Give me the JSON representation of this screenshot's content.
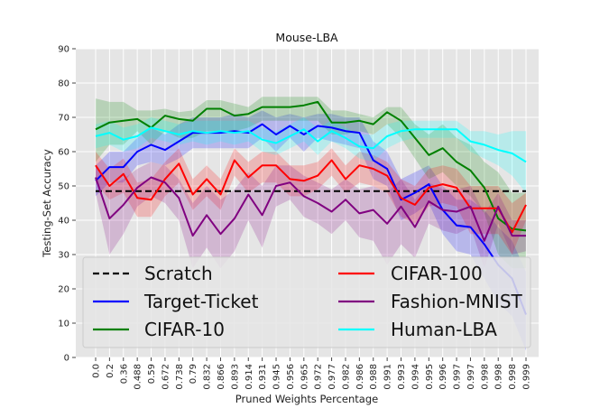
{
  "chart_data": {
    "type": "line",
    "title": "Mouse-LBA",
    "xlabel": "Pruned Weights Percentage",
    "ylabel": "Testing-Set Accuracy",
    "ylim": [
      0,
      90
    ],
    "yticks": [
      0,
      10,
      20,
      30,
      40,
      50,
      60,
      70,
      80,
      90
    ],
    "grid": true,
    "legend_position": "lower-left",
    "x": [
      "0.0",
      "0.2",
      "0.36",
      "0.488",
      "0.59",
      "0.672",
      "0.738",
      "0.79",
      "0.832",
      "0.866",
      "0.893",
      "0.914",
      "0.931",
      "0.945",
      "0.956",
      "0.965",
      "0.972",
      "0.977",
      "0.982",
      "0.986",
      "0.988",
      "0.991",
      "0.993",
      "0.994",
      "0.995",
      "0.996",
      "0.997",
      "0.997",
      "0.998",
      "0.998",
      "0.998",
      "0.999"
    ],
    "series": [
      {
        "name": "Scratch",
        "color": "#000000",
        "dash": true,
        "values": [
          48.5,
          48.5,
          48.5,
          48.5,
          48.5,
          48.5,
          48.5,
          48.5,
          48.5,
          48.5,
          48.5,
          48.5,
          48.5,
          48.5,
          48.5,
          48.5,
          48.5,
          48.5,
          48.5,
          48.5,
          48.5,
          48.5,
          48.5,
          48.5,
          48.5,
          48.5,
          48.5,
          48.5,
          48.5,
          48.5,
          48.5,
          48.5
        ]
      },
      {
        "name": "Target-Ticket",
        "color": "#0000ff",
        "values": [
          51.5,
          55.5,
          55.5,
          60,
          62,
          60.5,
          63,
          65.5,
          65.5,
          65.5,
          66,
          65.5,
          68,
          65,
          67.5,
          65,
          67.5,
          67,
          66,
          65.5,
          57.5,
          55,
          46,
          48,
          50.5,
          43,
          38.5,
          38,
          33,
          27,
          23,
          12.5
        ],
        "upper": [
          56,
          60,
          60,
          64,
          67,
          65,
          68,
          70,
          70,
          70,
          71,
          70,
          72,
          70,
          71,
          70,
          71,
          71,
          70,
          70,
          63,
          60,
          52,
          54,
          56,
          50,
          46,
          46,
          43,
          38,
          34,
          25
        ],
        "lower": [
          47,
          51,
          51,
          56,
          57,
          56,
          58,
          61,
          61,
          61,
          61,
          61,
          64,
          60,
          64,
          60,
          64,
          63,
          62,
          61,
          52,
          50,
          40,
          42,
          45,
          36,
          31,
          30,
          23,
          16,
          12,
          2
        ]
      },
      {
        "name": "CIFAR-10",
        "color": "#008000",
        "values": [
          66.5,
          68.5,
          69,
          69.5,
          67,
          70.5,
          69.5,
          69,
          72.5,
          72.5,
          70.5,
          71,
          73,
          73,
          73,
          73.5,
          74.5,
          68.5,
          68.5,
          69,
          68,
          71.5,
          69,
          64,
          59,
          61,
          57,
          54.5,
          49.5,
          40.5,
          37.5,
          37
        ],
        "upper": [
          75.5,
          74.5,
          74.5,
          72,
          72,
          72.5,
          71.5,
          72,
          75,
          75,
          74,
          73,
          76,
          76,
          76,
          76,
          76,
          72,
          72,
          71,
          70,
          73,
          73,
          68,
          65,
          68,
          64,
          62,
          57,
          54,
          48,
          48
        ],
        "lower": [
          57,
          62,
          62,
          66,
          62,
          66,
          64,
          64,
          66,
          66,
          66,
          67,
          69,
          69,
          69,
          69,
          69,
          65,
          65,
          66,
          65,
          68,
          64,
          58,
          52,
          54,
          50,
          47,
          42,
          30,
          26,
          26
        ]
      },
      {
        "name": "CIFAR-100",
        "color": "#ff0000",
        "values": [
          56,
          50,
          53.5,
          46.5,
          46,
          52,
          56.5,
          47.5,
          52,
          47.5,
          57.5,
          52.5,
          56,
          56,
          52,
          51.5,
          53,
          57.5,
          52,
          56,
          55,
          53,
          46.5,
          44.5,
          49.5,
          50.5,
          49.5,
          43.5,
          43.5,
          43.5,
          36.5,
          44.5
        ],
        "upper": [
          60,
          55,
          58,
          51,
          52,
          57,
          61,
          52,
          56,
          52,
          61,
          57,
          60,
          60,
          56,
          56,
          57,
          61,
          56,
          60,
          59,
          57,
          52,
          50,
          55,
          56,
          55,
          50,
          50,
          50,
          45,
          48
        ],
        "lower": [
          51,
          46,
          48,
          41,
          41,
          47,
          51,
          43,
          47,
          43,
          53,
          48,
          51,
          51,
          47,
          47,
          49,
          53,
          48,
          51,
          50,
          48,
          41,
          39,
          44,
          45,
          44,
          36,
          36,
          36,
          30,
          40
        ]
      },
      {
        "name": "Fashion-MNIST",
        "color": "#800080",
        "values": [
          52.5,
          40.5,
          44.5,
          49.5,
          52.5,
          51,
          46.5,
          35.5,
          41.5,
          36,
          40.5,
          47.5,
          41.5,
          50,
          51,
          47,
          45,
          42.5,
          46,
          42,
          43,
          39,
          44,
          38,
          45.5,
          43,
          42.5,
          44,
          34,
          44,
          35.5,
          35.5
        ],
        "upper": [
          56,
          50,
          52,
          55,
          57,
          56,
          52,
          45,
          50,
          46,
          49,
          54,
          50,
          56,
          56,
          53,
          51,
          49,
          52,
          49,
          50,
          48,
          52,
          46,
          51,
          49,
          49,
          50,
          42,
          48,
          40,
          40
        ],
        "lower": [
          48,
          30,
          36,
          44,
          47,
          45,
          40,
          26,
          32,
          26,
          31,
          40,
          32,
          44,
          46,
          41,
          39,
          36,
          40,
          35,
          34,
          27,
          33,
          29,
          39,
          37,
          36,
          38,
          26,
          39,
          30,
          31
        ]
      },
      {
        "name": "Human-LBA",
        "color": "#00ffff",
        "values": [
          64.5,
          65.5,
          63.5,
          64.5,
          67,
          66,
          65,
          66,
          65.5,
          66,
          65.5,
          66,
          63.5,
          62.5,
          64.5,
          66.5,
          63,
          66,
          64,
          61.5,
          61,
          64.5,
          66,
          66.5,
          66.5,
          66.5,
          66.5,
          63,
          62,
          60.5,
          59.5,
          57
        ],
        "upper": [
          68,
          69,
          67,
          68,
          70,
          69,
          68,
          69,
          69,
          69,
          69,
          69,
          67,
          66,
          68,
          70,
          67,
          69,
          67,
          65,
          65,
          68,
          69,
          69,
          69,
          69,
          69,
          66,
          66,
          65,
          66,
          66
        ],
        "lower": [
          61,
          62,
          60,
          61,
          64,
          63,
          62,
          63,
          62,
          63,
          62,
          63,
          60,
          59,
          61,
          63,
          59,
          63,
          61,
          58,
          57,
          61,
          63,
          64,
          64,
          64,
          64,
          60,
          58,
          56,
          53,
          48
        ]
      }
    ]
  }
}
